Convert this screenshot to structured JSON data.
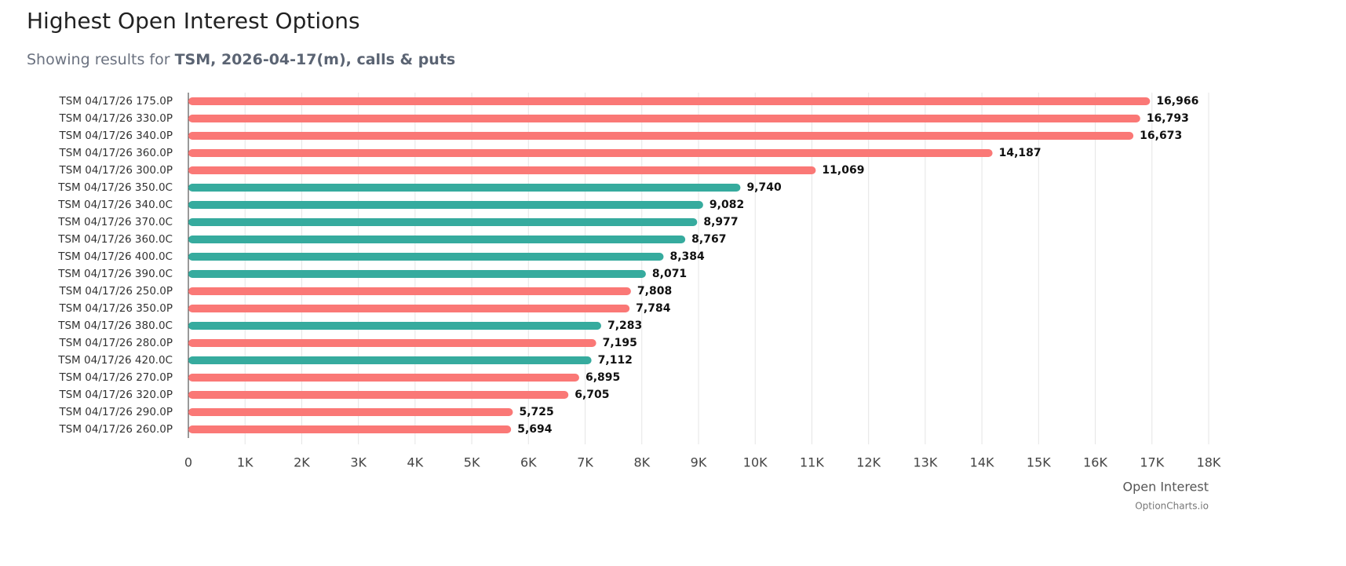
{
  "chart_data": {
    "type": "hbar",
    "title": "Highest Open Interest Options",
    "subtitle": {
      "text": "Showing results for",
      "highlight": "TSM, 2026-04-17(m), calls & puts"
    },
    "x_label": "Open Interest",
    "credit": "OptionCharts.io",
    "categories": [
      "TSM 04/17/26 175.0P",
      "TSM 04/17/26 330.0P",
      "TSM 04/17/26 340.0P",
      "TSM 04/17/26 360.0P",
      "TSM 04/17/26 300.0P",
      "TSM 04/17/26 350.0C",
      "TSM 04/17/26 340.0C",
      "TSM 04/17/26 370.0C",
      "TSM 04/17/26 360.0C",
      "TSM 04/17/26 400.0C",
      "TSM 04/17/26 390.0C",
      "TSM 04/17/26 250.0P",
      "TSM 04/17/26 350.0P",
      "TSM 04/17/26 380.0C",
      "TSM 04/17/26 280.0P",
      "TSM 04/17/26 420.0C",
      "TSM 04/17/26 270.0P",
      "TSM 04/17/26 320.0P",
      "TSM 04/17/26 290.0P",
      "TSM 04/17/26 260.0P"
    ],
    "values": [
      16966,
      16793,
      16673,
      14187,
      11069,
      9740,
      9082,
      8977,
      8767,
      8384,
      8071,
      7808,
      7784,
      7283,
      7195,
      7112,
      6895,
      6705,
      5725,
      5694
    ],
    "value_labels": [
      "16,966",
      "16,793",
      "16,673",
      "14,187",
      "11,069",
      "9,740",
      "9,082",
      "8,977",
      "8,767",
      "8,384",
      "8,071",
      "7,808",
      "7,784",
      "7,283",
      "7,195",
      "7,112",
      "6,895",
      "6,705",
      "5,725",
      "5,694"
    ],
    "colors": [
      "#fa7876",
      "#fa7876",
      "#fa7876",
      "#fa7876",
      "#fa7876",
      "#36ab9e",
      "#36ab9e",
      "#36ab9e",
      "#36ab9e",
      "#36ab9e",
      "#36ab9e",
      "#fa7876",
      "#fa7876",
      "#36ab9e",
      "#fa7876",
      "#36ab9e",
      "#fa7876",
      "#fa7876",
      "#fa7876",
      "#fa7876"
    ],
    "xlim": [
      0,
      18000
    ],
    "xticks": [
      0,
      {
        "value": 1000,
        "label": "1K"
      },
      {
        "value": 2000,
        "label": "2K"
      },
      {
        "value": 3000,
        "label": "3K"
      },
      {
        "value": 4000,
        "label": "4K"
      },
      {
        "value": 5000,
        "label": "5K"
      },
      {
        "value": 6000,
        "label": "6K"
      },
      {
        "value": 7000,
        "label": "7K"
      },
      {
        "value": 8000,
        "label": "8K"
      },
      {
        "value": 9000,
        "label": "9K"
      },
      {
        "value": 10000,
        "label": "10K"
      },
      {
        "value": 11000,
        "label": "11K"
      },
      {
        "value": 12000,
        "label": "12K"
      },
      {
        "value": 13000,
        "label": "13K"
      },
      {
        "value": 14000,
        "label": "14K"
      },
      {
        "value": 15000,
        "label": "15K"
      },
      {
        "value": 16000,
        "label": "16K"
      },
      {
        "value": 17000,
        "label": "17K"
      },
      {
        "value": 18000,
        "label": "18K"
      }
    ],
    "grid": true
  }
}
